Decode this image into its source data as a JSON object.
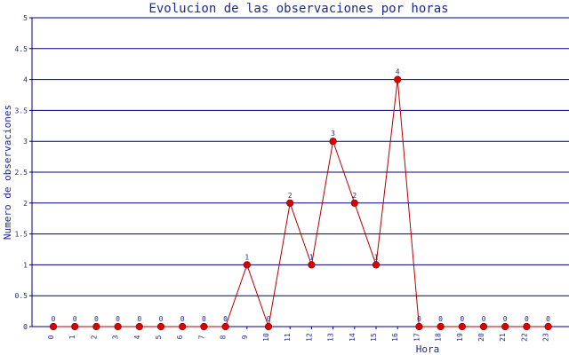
{
  "chart_data": {
    "type": "line",
    "title": "Evolucion de las observaciones por horas",
    "xlabel": "Hora",
    "ylabel": "Numero de observaciones",
    "categories": [
      "0",
      "1",
      "2",
      "3",
      "4",
      "5",
      "6",
      "7",
      "8",
      "9",
      "10",
      "11",
      "12",
      "13",
      "14",
      "15",
      "16",
      "17",
      "18",
      "19",
      "20",
      "21",
      "22",
      "23"
    ],
    "values": [
      0,
      0,
      0,
      0,
      0,
      0,
      0,
      0,
      0,
      1,
      0,
      2,
      1,
      3,
      2,
      1,
      4,
      0,
      0,
      0,
      0,
      0,
      0,
      0
    ],
    "data_labels": [
      "0",
      "0",
      "0",
      "0",
      "0",
      "0",
      "0",
      "0",
      "0",
      "1",
      "0",
      "2",
      "1",
      "3",
      "2",
      "1",
      "4",
      "0",
      "0",
      "0",
      "0",
      "0",
      "0",
      "0"
    ],
    "y_ticks": [
      "0",
      "0.5",
      "1",
      "1.5",
      "2",
      "2.5",
      "3",
      "3.5",
      "4",
      "4.5",
      "5"
    ],
    "ylim": [
      0,
      5
    ],
    "grid": true,
    "legend": "none",
    "colors": {
      "line": "#b40000",
      "marker": "#dd0000",
      "grid": "#000080",
      "axis": "#000080",
      "text": "#1f2a8c"
    }
  }
}
